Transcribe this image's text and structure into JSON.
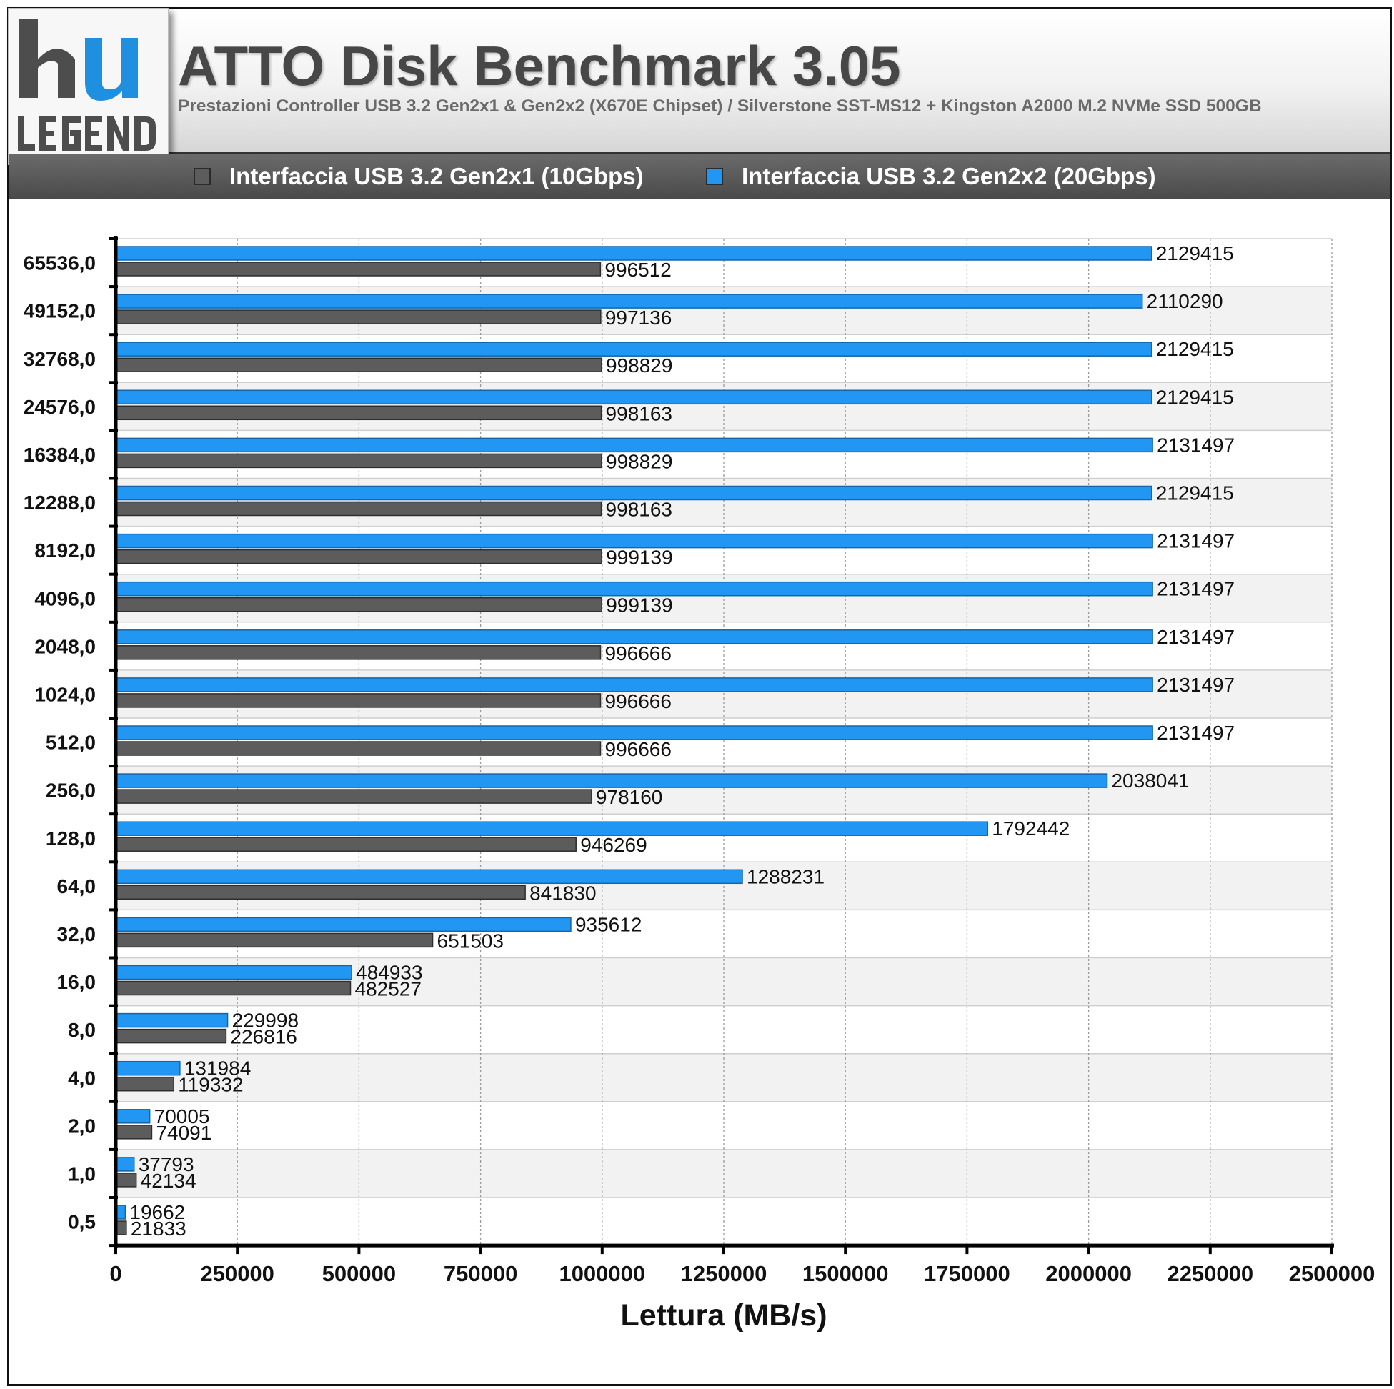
{
  "logo": {
    "text_top": "hu",
    "text_bottom": "LEGEND"
  },
  "header": {
    "title": "ATTO Disk Benchmark 3.05",
    "subtitle": "Prestazioni Controller USB 3.2 Gen2x1 & Gen2x2 (X670E Chipset) / Silverstone SST-MS12 + Kingston A2000 M.2 NVMe SSD 500GB"
  },
  "colors": {
    "gen2x1": "#5c5c5c",
    "gen2x2": "#2196f3",
    "header_bg": "#e6e6e6",
    "legend_bg": "#555555"
  },
  "chart_data": {
    "type": "bar",
    "orientation": "horizontal",
    "title": "ATTO Disk Benchmark 3.05",
    "subtitle": "Prestazioni Controller USB 3.2 Gen2x1 & Gen2x2 (X670E Chipset) / Silverstone SST-MS12 + Kingston A2000 M.2 NVMe SSD 500GB",
    "xlabel": "Lettura (MB/s)",
    "ylabel": "",
    "xlim": [
      0,
      2500000
    ],
    "x_ticks": [
      "0",
      "250000",
      "500000",
      "750000",
      "1000000",
      "1250000",
      "1500000",
      "1750000",
      "2000000",
      "2250000",
      "2500000"
    ],
    "categories": [
      "65536,0",
      "49152,0",
      "32768,0",
      "24576,0",
      "16384,0",
      "12288,0",
      "8192,0",
      "4096,0",
      "2048,0",
      "1024,0",
      "512,0",
      "256,0",
      "128,0",
      "64,0",
      "32,0",
      "16,0",
      "8,0",
      "4,0",
      "2,0",
      "1,0",
      "0,5"
    ],
    "series": [
      {
        "name": "Interfaccia USB 3.2 Gen2x2 (20Gbps)",
        "color": "#2196f3",
        "values": [
          2129415,
          2110290,
          2129415,
          2129415,
          2131497,
          2129415,
          2131497,
          2131497,
          2131497,
          2131497,
          2131497,
          2038041,
          1792442,
          1288231,
          935612,
          484933,
          229998,
          131984,
          70005,
          37793,
          19662
        ]
      },
      {
        "name": "Interfaccia USB 3.2 Gen2x1 (10Gbps)",
        "color": "#5c5c5c",
        "values": [
          996512,
          997136,
          998829,
          998163,
          998829,
          998163,
          999139,
          999139,
          996666,
          996666,
          996666,
          978160,
          946269,
          841830,
          651503,
          482527,
          226816,
          119332,
          74091,
          42134,
          21833
        ]
      }
    ],
    "legend": {
      "position": "top",
      "order": [
        "Interfaccia USB 3.2 Gen2x1 (10Gbps)",
        "Interfaccia USB 3.2 Gen2x2 (20Gbps)"
      ]
    },
    "grid": true,
    "data_labels": true
  }
}
